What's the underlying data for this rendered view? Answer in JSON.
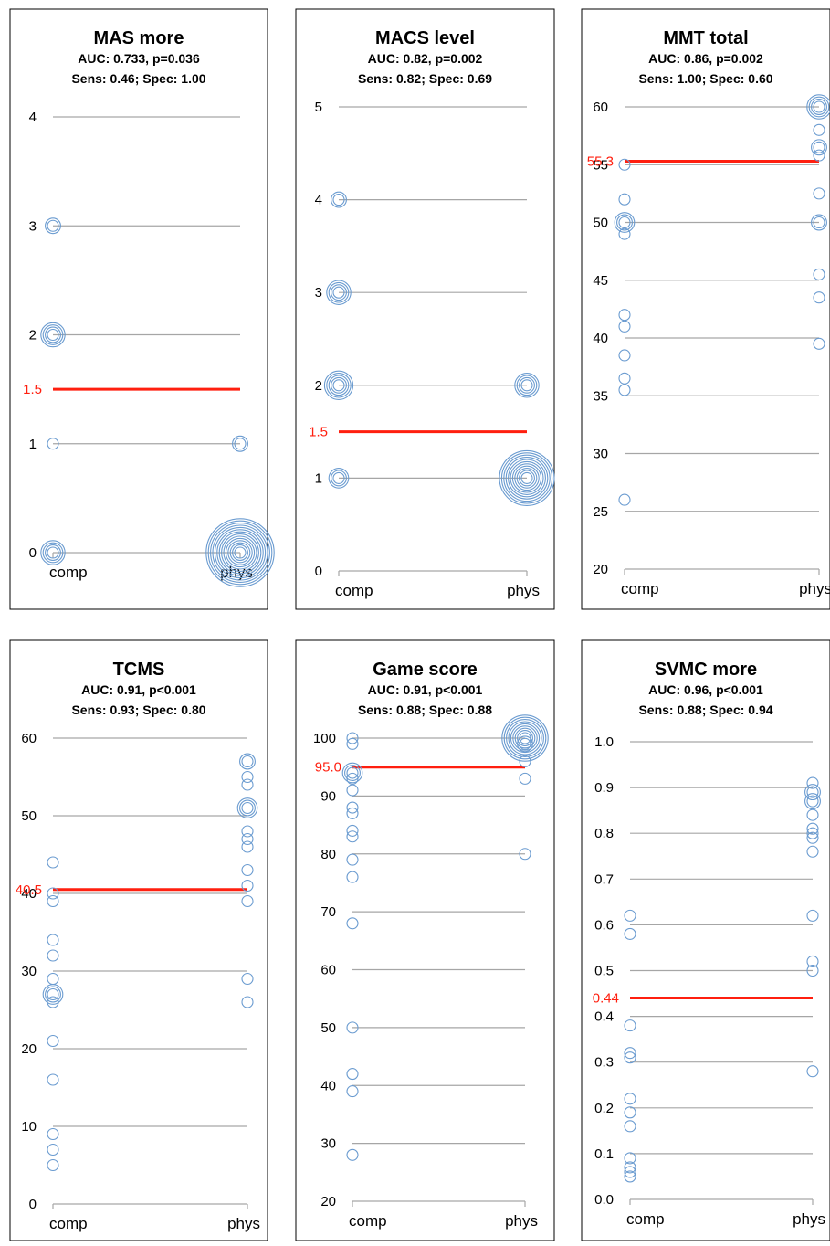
{
  "colors": {
    "marker": "#6a9bd0",
    "cutoff": "#ff1f0f",
    "grid": "#a6a6a6",
    "frame": "#000000",
    "cutoff_text": "#ff1f0f"
  },
  "chart_data": [
    {
      "type": "scatter",
      "title": "MAS more",
      "subtitle_line1": "AUC: 0.733, p=0.036",
      "subtitle_line2": "Sens: 0.46; Spec: 1.00",
      "categories": [
        "comp",
        "phys"
      ],
      "yticks": [
        0,
        1,
        2,
        3,
        4
      ],
      "ylim": [
        0,
        4
      ],
      "cutoff": 1.5,
      "cutoff_label": "1.5",
      "series": [
        {
          "category": "comp",
          "points": [
            {
              "y": 3,
              "n": 2
            },
            {
              "y": 2,
              "n": 4
            },
            {
              "y": 1,
              "n": 1
            },
            {
              "y": 0,
              "n": 4
            }
          ]
        },
        {
          "category": "phys",
          "points": [
            {
              "y": 1,
              "n": 2
            },
            {
              "y": 0,
              "n": 14
            }
          ]
        }
      ]
    },
    {
      "type": "scatter",
      "title": "MACS level",
      "subtitle_line1": "AUC: 0.82, p=0.002",
      "subtitle_line2": "Sens: 0.82; Spec: 0.69",
      "categories": [
        "comp",
        "phys"
      ],
      "yticks": [
        0,
        1,
        2,
        3,
        4,
        5
      ],
      "ylim": [
        0,
        5
      ],
      "cutoff": 1.5,
      "cutoff_label": "1.5",
      "series": [
        {
          "category": "comp",
          "points": [
            {
              "y": 4,
              "n": 2
            },
            {
              "y": 3,
              "n": 4
            },
            {
              "y": 2,
              "n": 5
            },
            {
              "y": 1,
              "n": 3
            }
          ]
        },
        {
          "category": "phys",
          "points": [
            {
              "y": 2,
              "n": 4
            },
            {
              "y": 1,
              "n": 11
            }
          ]
        }
      ]
    },
    {
      "type": "scatter",
      "title": "MMT total",
      "subtitle_line1": "AUC: 0.86, p=0.002",
      "subtitle_line2": "Sens: 1.00; Spec: 0.60",
      "categories": [
        "comp",
        "phys"
      ],
      "yticks": [
        20,
        25,
        30,
        35,
        40,
        45,
        50,
        55,
        60
      ],
      "ylim": [
        20,
        60
      ],
      "cutoff": 55.3,
      "cutoff_label": "55.3",
      "series": [
        {
          "category": "comp",
          "points": [
            {
              "y": 55,
              "n": 1
            },
            {
              "y": 52,
              "n": 1
            },
            {
              "y": 50,
              "n": 3
            },
            {
              "y": 49,
              "n": 1
            },
            {
              "y": 42,
              "n": 1
            },
            {
              "y": 41,
              "n": 1
            },
            {
              "y": 38.5,
              "n": 1
            },
            {
              "y": 36.5,
              "n": 1
            },
            {
              "y": 35.5,
              "n": 1
            },
            {
              "y": 26,
              "n": 1
            }
          ]
        },
        {
          "category": "phys",
          "points": [
            {
              "y": 60,
              "n": 4
            },
            {
              "y": 58,
              "n": 1
            },
            {
              "y": 56.5,
              "n": 2
            },
            {
              "y": 55.8,
              "n": 1
            },
            {
              "y": 52.5,
              "n": 1
            },
            {
              "y": 50,
              "n": 2
            },
            {
              "y": 45.5,
              "n": 1
            },
            {
              "y": 43.5,
              "n": 1
            },
            {
              "y": 39.5,
              "n": 1
            }
          ]
        }
      ]
    },
    {
      "type": "scatter",
      "title": "TCMS",
      "subtitle_line1": "AUC: 0.91, p<0.001",
      "subtitle_line2": "Sens: 0.93; Spec: 0.80",
      "categories": [
        "comp",
        "phys"
      ],
      "yticks": [
        0,
        10,
        20,
        30,
        40,
        50,
        60
      ],
      "ylim": [
        0,
        60
      ],
      "cutoff": 40.5,
      "cutoff_label": "40.5",
      "series": [
        {
          "category": "comp",
          "points": [
            {
              "y": 44,
              "n": 1
            },
            {
              "y": 40,
              "n": 1
            },
            {
              "y": 39,
              "n": 1
            },
            {
              "y": 34,
              "n": 1
            },
            {
              "y": 32,
              "n": 1
            },
            {
              "y": 29,
              "n": 1
            },
            {
              "y": 27,
              "n": 3
            },
            {
              "y": 26,
              "n": 1
            },
            {
              "y": 21,
              "n": 1
            },
            {
              "y": 16,
              "n": 1
            },
            {
              "y": 9,
              "n": 1
            },
            {
              "y": 7,
              "n": 1
            },
            {
              "y": 5,
              "n": 1
            }
          ]
        },
        {
          "category": "phys",
          "points": [
            {
              "y": 57,
              "n": 2
            },
            {
              "y": 55,
              "n": 1
            },
            {
              "y": 54,
              "n": 1
            },
            {
              "y": 51,
              "n": 3
            },
            {
              "y": 48,
              "n": 1
            },
            {
              "y": 47,
              "n": 1
            },
            {
              "y": 46,
              "n": 1
            },
            {
              "y": 43,
              "n": 1
            },
            {
              "y": 41,
              "n": 1
            },
            {
              "y": 39,
              "n": 1
            },
            {
              "y": 29,
              "n": 1
            },
            {
              "y": 26,
              "n": 1
            }
          ]
        }
      ]
    },
    {
      "type": "scatter",
      "title": "Game score",
      "subtitle_line1": "AUC: 0.91, p<0.001",
      "subtitle_line2": "Sens: 0.88; Spec: 0.88",
      "categories": [
        "comp",
        "phys"
      ],
      "yticks": [
        20,
        30,
        40,
        50,
        60,
        70,
        80,
        90,
        100
      ],
      "ylim": [
        20,
        100
      ],
      "cutoff": 95.0,
      "cutoff_label": "95.0",
      "series": [
        {
          "category": "comp",
          "points": [
            {
              "y": 100,
              "n": 1
            },
            {
              "y": 99,
              "n": 1
            },
            {
              "y": 94,
              "n": 3
            },
            {
              "y": 93,
              "n": 1
            },
            {
              "y": 91,
              "n": 1
            },
            {
              "y": 88,
              "n": 1
            },
            {
              "y": 87,
              "n": 1
            },
            {
              "y": 84,
              "n": 1
            },
            {
              "y": 83,
              "n": 1
            },
            {
              "y": 79,
              "n": 1
            },
            {
              "y": 76,
              "n": 1
            },
            {
              "y": 68,
              "n": 1
            },
            {
              "y": 50,
              "n": 1
            },
            {
              "y": 42,
              "n": 1
            },
            {
              "y": 39,
              "n": 1
            },
            {
              "y": 28,
              "n": 1
            }
          ]
        },
        {
          "category": "phys",
          "points": [
            {
              "y": 100,
              "n": 9
            },
            {
              "y": 99,
              "n": 2
            },
            {
              "y": 96,
              "n": 1
            },
            {
              "y": 93,
              "n": 1
            },
            {
              "y": 80,
              "n": 1
            }
          ]
        }
      ]
    },
    {
      "type": "scatter",
      "title": "SVMC more",
      "subtitle_line1": "AUC: 0.96, p<0.001",
      "subtitle_line2": "Sens: 0.88; Spec: 0.94",
      "categories": [
        "comp",
        "phys"
      ],
      "yticks": [
        "0.0",
        "0.1",
        "0.2",
        "0.3",
        "0.4",
        "0.5",
        "0.6",
        "0.7",
        "0.8",
        "0.9",
        "1.0"
      ],
      "ylim": [
        0,
        1
      ],
      "cutoff": 0.44,
      "cutoff_label": "0.44",
      "series": [
        {
          "category": "comp",
          "points": [
            {
              "y": 0.62,
              "n": 1
            },
            {
              "y": 0.58,
              "n": 1
            },
            {
              "y": 0.38,
              "n": 1
            },
            {
              "y": 0.32,
              "n": 1
            },
            {
              "y": 0.31,
              "n": 1
            },
            {
              "y": 0.22,
              "n": 1
            },
            {
              "y": 0.19,
              "n": 1
            },
            {
              "y": 0.16,
              "n": 1
            },
            {
              "y": 0.09,
              "n": 1
            },
            {
              "y": 0.07,
              "n": 1
            },
            {
              "y": 0.06,
              "n": 1
            },
            {
              "y": 0.05,
              "n": 1
            }
          ]
        },
        {
          "category": "phys",
          "points": [
            {
              "y": 0.91,
              "n": 1
            },
            {
              "y": 0.89,
              "n": 2
            },
            {
              "y": 0.87,
              "n": 2
            },
            {
              "y": 0.84,
              "n": 1
            },
            {
              "y": 0.81,
              "n": 1
            },
            {
              "y": 0.8,
              "n": 1
            },
            {
              "y": 0.79,
              "n": 1
            },
            {
              "y": 0.76,
              "n": 1
            },
            {
              "y": 0.62,
              "n": 1
            },
            {
              "y": 0.52,
              "n": 1
            },
            {
              "y": 0.5,
              "n": 1
            },
            {
              "y": 0.28,
              "n": 1
            }
          ]
        }
      ]
    }
  ]
}
